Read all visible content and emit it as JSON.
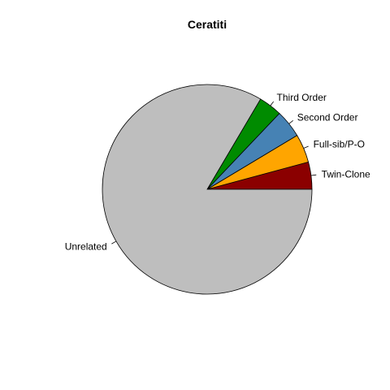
{
  "chart_data": {
    "type": "pie",
    "title": "Ceratiti",
    "direction": "counterclockwise",
    "start_angle_deg": 0,
    "slices": [
      {
        "label": "Twin-Clone",
        "value": 4.2,
        "color": "#8B0000"
      },
      {
        "label": "Full-sib/P-O",
        "value": 4.4,
        "color": "#FFA500"
      },
      {
        "label": "Second Order",
        "value": 4.3,
        "color": "#4682B4"
      },
      {
        "label": "Third Order",
        "value": 3.6,
        "color": "#008B00"
      },
      {
        "label": "Unrelated",
        "value": 83.5,
        "color": "#BEBEBE"
      }
    ]
  }
}
